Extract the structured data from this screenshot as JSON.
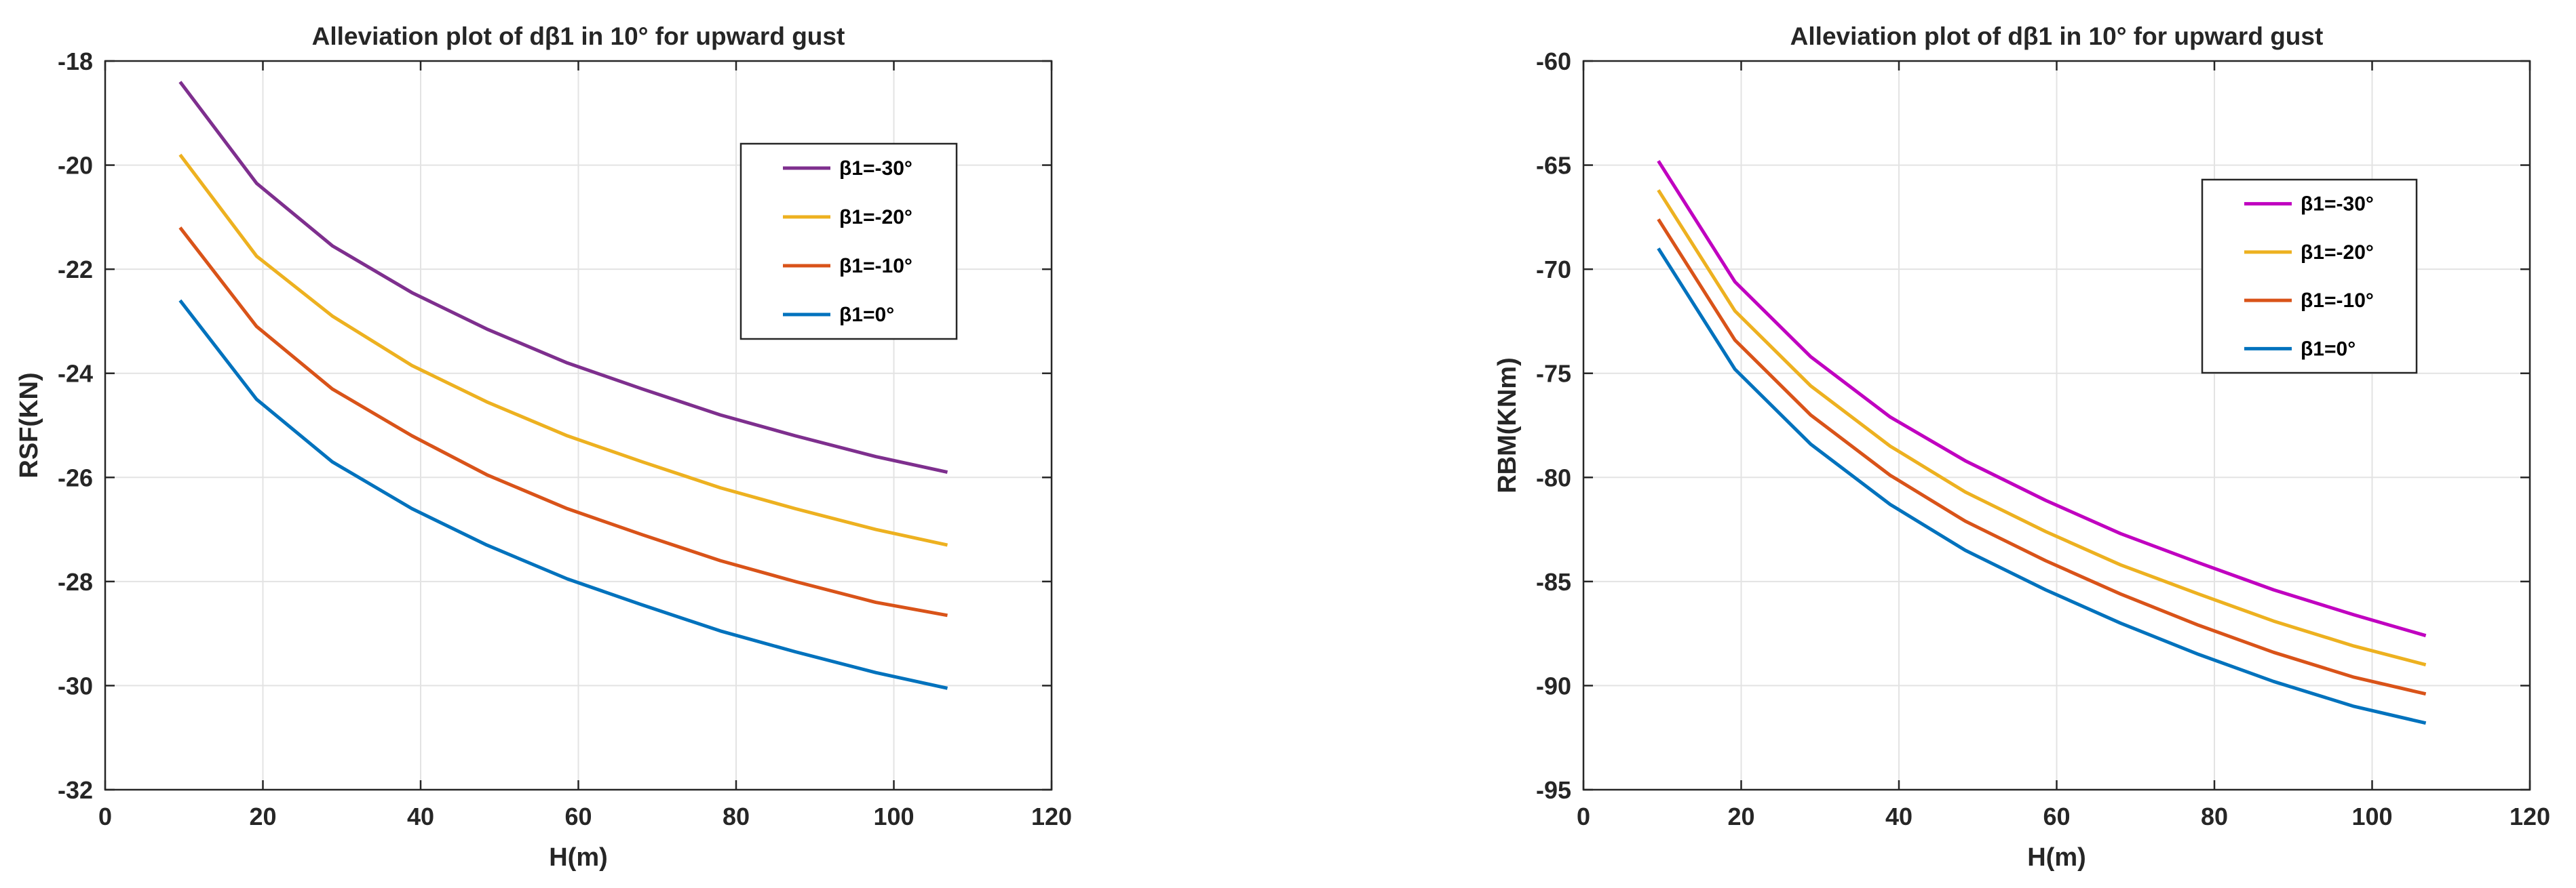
{
  "chart_data": [
    {
      "type": "line",
      "title": "Alleviation plot of dβ1 in 10° for upward gust",
      "xlabel": "H(m)",
      "ylabel": "RSF(KN)",
      "xlim": [
        0,
        120
      ],
      "ylim": [
        -32,
        -18
      ],
      "xticks": [
        0,
        20,
        40,
        60,
        80,
        100,
        120
      ],
      "yticks": [
        -32,
        -30,
        -28,
        -26,
        -24,
        -22,
        -20,
        -18
      ],
      "grid": true,
      "legend_position": "top-right",
      "x": [
        9.5,
        19.2,
        28.8,
        38.9,
        48.4,
        58.6,
        68.1,
        78.0,
        87.5,
        97.7,
        106.8
      ],
      "series": [
        {
          "name": "β1=-30°",
          "color": "#7E2F8E",
          "values": [
            -18.4,
            -20.35,
            -21.55,
            -22.45,
            -23.15,
            -23.8,
            -24.3,
            -24.8,
            -25.2,
            -25.6,
            -25.9
          ]
        },
        {
          "name": "β1=-20°",
          "color": "#EDB120",
          "values": [
            -19.8,
            -21.75,
            -22.9,
            -23.85,
            -24.55,
            -25.2,
            -25.7,
            -26.2,
            -26.6,
            -27.0,
            -27.3
          ]
        },
        {
          "name": "β1=-10°",
          "color": "#D95319",
          "values": [
            -21.2,
            -23.1,
            -24.3,
            -25.2,
            -25.95,
            -26.6,
            -27.1,
            -27.6,
            -28.0,
            -28.4,
            -28.65
          ]
        },
        {
          "name": "β1=0°",
          "color": "#0072BD",
          "values": [
            -22.6,
            -24.5,
            -25.7,
            -26.6,
            -27.3,
            -27.95,
            -28.45,
            -28.95,
            -29.35,
            -29.75,
            -30.05
          ]
        }
      ]
    },
    {
      "type": "line",
      "title": "Alleviation plot of dβ1 in 10° for upward gust",
      "xlabel": "H(m)",
      "ylabel": "RBM(KNm)",
      "xlim": [
        0,
        120
      ],
      "ylim": [
        -95,
        -60
      ],
      "xticks": [
        0,
        20,
        40,
        60,
        80,
        100,
        120
      ],
      "yticks": [
        -95,
        -90,
        -85,
        -80,
        -75,
        -70,
        -65,
        -60
      ],
      "grid": true,
      "legend_position": "top-right",
      "x": [
        9.5,
        19.2,
        28.8,
        38.9,
        48.4,
        58.6,
        68.1,
        78.0,
        87.5,
        97.7,
        106.8
      ],
      "series": [
        {
          "name": "β1=-30°",
          "color": "#C000C0",
          "values": [
            -64.8,
            -70.6,
            -74.2,
            -77.1,
            -79.2,
            -81.1,
            -82.7,
            -84.1,
            -85.4,
            -86.6,
            -87.6
          ]
        },
        {
          "name": "β1=-20°",
          "color": "#EDB120",
          "values": [
            -66.2,
            -72.0,
            -75.6,
            -78.5,
            -80.7,
            -82.6,
            -84.2,
            -85.6,
            -86.9,
            -88.1,
            -89.0
          ]
        },
        {
          "name": "β1=-10°",
          "color": "#D95319",
          "values": [
            -67.6,
            -73.4,
            -77.0,
            -79.9,
            -82.1,
            -84.0,
            -85.6,
            -87.1,
            -88.4,
            -89.6,
            -90.4
          ]
        },
        {
          "name": "β1=0°",
          "color": "#0072BD",
          "values": [
            -69.0,
            -74.8,
            -78.4,
            -81.3,
            -83.5,
            -85.4,
            -87.0,
            -88.5,
            -89.8,
            -91.0,
            -91.8
          ]
        }
      ]
    }
  ]
}
